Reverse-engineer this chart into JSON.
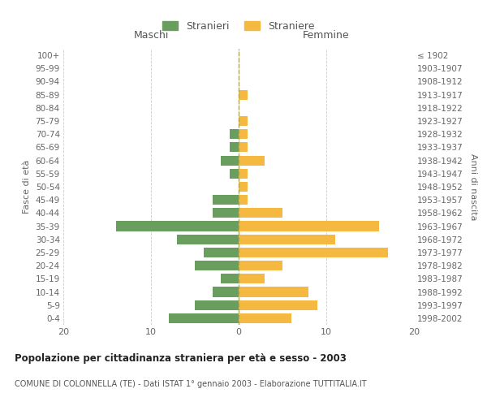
{
  "age_groups": [
    "0-4",
    "5-9",
    "10-14",
    "15-19",
    "20-24",
    "25-29",
    "30-34",
    "35-39",
    "40-44",
    "45-49",
    "50-54",
    "55-59",
    "60-64",
    "65-69",
    "70-74",
    "75-79",
    "80-84",
    "85-89",
    "90-94",
    "95-99",
    "100+"
  ],
  "birth_years": [
    "1998-2002",
    "1993-1997",
    "1988-1992",
    "1983-1987",
    "1978-1982",
    "1973-1977",
    "1968-1972",
    "1963-1967",
    "1958-1962",
    "1953-1957",
    "1948-1952",
    "1943-1947",
    "1938-1942",
    "1933-1937",
    "1928-1932",
    "1923-1927",
    "1918-1922",
    "1913-1917",
    "1908-1912",
    "1903-1907",
    "≤ 1902"
  ],
  "maschi": [
    8,
    5,
    3,
    2,
    5,
    4,
    7,
    14,
    3,
    3,
    0,
    1,
    2,
    1,
    1,
    0,
    0,
    0,
    0,
    0,
    0
  ],
  "femmine": [
    6,
    9,
    8,
    3,
    5,
    17,
    11,
    16,
    5,
    1,
    1,
    1,
    3,
    1,
    1,
    1,
    0,
    1,
    0,
    0,
    0
  ],
  "color_maschi": "#6a9e5e",
  "color_femmine": "#f5b942",
  "title": "Popolazione per cittadinanza straniera per età e sesso - 2003",
  "subtitle": "COMUNE DI COLONNELLA (TE) - Dati ISTAT 1° gennaio 2003 - Elaborazione TUTTITALIA.IT",
  "xlabel_left": "Maschi",
  "xlabel_right": "Femmine",
  "ylabel_left": "Fasce di età",
  "ylabel_right": "Anni di nascita",
  "legend_maschi": "Stranieri",
  "legend_femmine": "Straniere",
  "xlim": 20,
  "background_color": "#ffffff",
  "grid_color": "#cccccc"
}
